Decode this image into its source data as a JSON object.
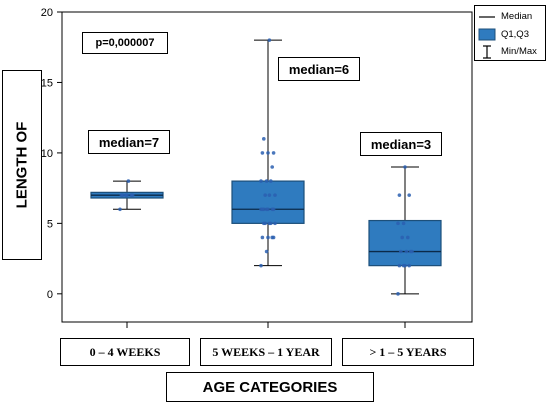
{
  "chart_data": {
    "type": "box",
    "ylabel": "LENGTH OF",
    "xlabel": "AGE CATEGORIES",
    "ylim": [
      -2,
      20
    ],
    "yticks": [
      0,
      5,
      10,
      15,
      20
    ],
    "categories": [
      "0 – 4 WEEKS",
      "5 WEEKS – 1 YEAR",
      "> 1 – 5 YEARS"
    ],
    "boxes": [
      {
        "min": 6,
        "q1": 6.8,
        "median": 7,
        "q3": 7.2,
        "max": 8,
        "points": [
          6,
          7,
          7,
          7,
          7,
          7,
          7,
          8
        ]
      },
      {
        "min": 2,
        "q1": 5,
        "median": 6,
        "q3": 8,
        "max": 18,
        "points": [
          2,
          3,
          4,
          4,
          4,
          4,
          5,
          5,
          5,
          5,
          5,
          6,
          6,
          6,
          6,
          6,
          6,
          6,
          7,
          7,
          7,
          8,
          8,
          8,
          9,
          10,
          10,
          10,
          11,
          18
        ]
      },
      {
        "min": 0,
        "q1": 2,
        "median": 3,
        "q3": 5.2,
        "max": 9,
        "points": [
          0,
          2,
          2,
          2,
          2,
          3,
          3,
          3,
          3,
          4,
          4,
          5,
          5,
          7,
          7,
          9
        ]
      }
    ],
    "annotations": [
      {
        "text": "p=0,000007"
      },
      {
        "text": "median=7"
      },
      {
        "text": "median=6"
      },
      {
        "text": "median=3"
      }
    ],
    "legend": {
      "placement": "top-right",
      "entries": [
        "Median",
        "Q1,Q3",
        "Min/Max"
      ]
    },
    "colors": {
      "box": "#2f7bbf",
      "box_stroke": "#1c4f7a",
      "point": "#2a5fb0"
    }
  }
}
